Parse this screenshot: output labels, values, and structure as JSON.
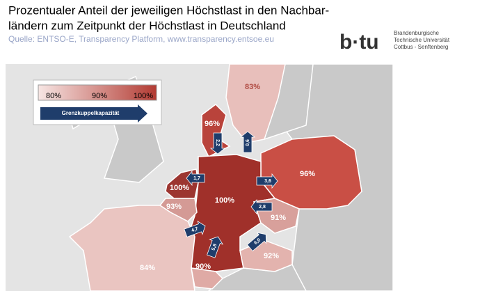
{
  "header": {
    "title_lines": [
      "Prozentualer Anteil der jeweiligen Höchstlast in den Nachbar-",
      "ländern zum Zeitpunkt der Höchstlast in Deutschland"
    ],
    "source": "Quelle: ENTSO-E, Transparency Platform, www.transparency.entsoe.eu"
  },
  "logo": {
    "mark": "b·tu",
    "lines": [
      "Brandenburgische",
      "Technische Universität",
      "Cottbus - Senftenberg"
    ]
  },
  "legend": {
    "labels": [
      "80%",
      "90%",
      "100%"
    ],
    "arrow_label": "Grenzkuppelkapazität"
  },
  "map": {
    "regions": [
      {
        "label": "83%"
      },
      {
        "label": "96%"
      },
      {
        "label": "96%"
      },
      {
        "label": "100%"
      },
      {
        "label": "100%"
      },
      {
        "label": "93%"
      },
      {
        "label": "91%"
      },
      {
        "label": "92%"
      },
      {
        "label": "84%"
      },
      {
        "label": "90%"
      }
    ],
    "arrows": [
      {
        "label": "1,7"
      },
      {
        "label": "2,2"
      },
      {
        "label": "0,6"
      },
      {
        "label": "3,6"
      },
      {
        "label": "2,8"
      },
      {
        "label": "6,0"
      },
      {
        "label": "5,8"
      },
      {
        "label": "4,7"
      }
    ]
  }
}
